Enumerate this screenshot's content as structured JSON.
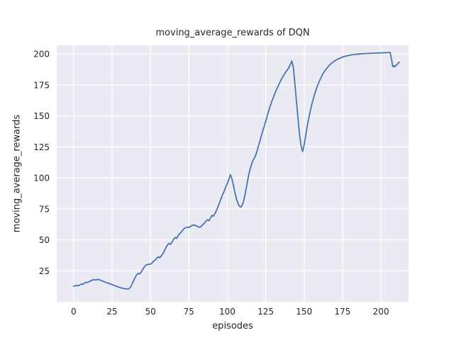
{
  "chart_data": {
    "type": "line",
    "title": "moving_average_rewards of DQN",
    "xlabel": "episodes",
    "ylabel": "moving_average_rewards",
    "xticks": [
      0,
      25,
      50,
      75,
      100,
      125,
      150,
      175,
      200
    ],
    "yticks": [
      25,
      50,
      75,
      100,
      125,
      150,
      175,
      200
    ],
    "xlim": [
      -11,
      218
    ],
    "ylim": [
      0,
      207
    ],
    "grid": true,
    "legend": "none",
    "colors": {
      "line": "#4C72B0",
      "plot_bg": "#EAEAF2",
      "grid": "#FFFFFF",
      "text": "#262626",
      "figure_bg": "#FFFFFF"
    },
    "series": [
      {
        "name": "moving_average_rewards",
        "x": [
          0,
          1,
          2,
          3,
          4,
          5,
          6,
          7,
          8,
          9,
          10,
          11,
          12,
          13,
          14,
          15,
          16,
          17,
          18,
          19,
          20,
          22,
          24,
          26,
          28,
          30,
          32,
          34,
          35,
          36,
          37,
          38,
          39,
          40,
          41,
          42,
          43,
          44,
          45,
          46,
          47,
          48,
          49,
          50,
          51,
          52,
          53,
          54,
          55,
          56,
          57,
          58,
          59,
          60,
          61,
          62,
          63,
          64,
          65,
          66,
          67,
          68,
          69,
          70,
          71,
          72,
          73,
          74,
          75,
          76,
          77,
          78,
          79,
          80,
          81,
          82,
          83,
          84,
          85,
          86,
          87,
          88,
          89,
          90,
          91,
          92,
          93,
          94,
          95,
          96,
          97,
          98,
          99,
          100,
          101,
          102,
          103,
          104,
          105,
          106,
          107,
          108,
          109,
          110,
          111,
          112,
          113,
          114,
          115,
          116,
          117,
          118,
          119,
          120,
          121,
          122,
          123,
          124,
          125,
          126,
          127,
          128,
          129,
          130,
          131,
          132,
          133,
          134,
          135,
          136,
          137,
          138,
          139,
          140,
          141,
          142,
          143,
          144,
          145,
          146,
          147,
          148,
          149,
          150,
          151,
          152,
          153,
          154,
          155,
          156,
          157,
          158,
          159,
          160,
          161,
          162,
          163,
          164,
          165,
          166,
          167,
          168,
          169,
          170,
          172,
          174,
          176,
          178,
          180,
          182,
          184,
          186,
          188,
          190,
          192,
          194,
          196,
          198,
          200,
          202,
          204,
          205,
          206,
          207,
          207.5,
          208,
          208.5,
          209,
          210,
          211,
          212
        ],
        "y": [
          12.5,
          12.8,
          13.2,
          12.9,
          13.6,
          14.3,
          14.1,
          15.0,
          15.8,
          15.5,
          16.2,
          16.8,
          17.4,
          17.9,
          17.5,
          17.8,
          18.1,
          17.6,
          17.1,
          16.6,
          16.1,
          15.2,
          14.3,
          13.4,
          12.4,
          11.5,
          10.8,
          10.4,
          10.3,
          10.6,
          11.8,
          14.2,
          17.0,
          19.6,
          21.7,
          23.0,
          22.5,
          24.0,
          26.3,
          28.2,
          29.5,
          30.0,
          30.2,
          30.4,
          31.2,
          32.7,
          33.6,
          34.9,
          36.3,
          35.5,
          36.9,
          38.7,
          41.0,
          43.7,
          45.8,
          47.2,
          46.3,
          48.1,
          50.2,
          51.9,
          51.1,
          53.5,
          55.0,
          56.2,
          57.8,
          59.3,
          59.8,
          60.2,
          60.0,
          60.7,
          61.5,
          62.0,
          61.7,
          61.1,
          60.5,
          60.1,
          60.8,
          62.2,
          63.3,
          64.8,
          66.2,
          65.5,
          67.4,
          69.7,
          69.1,
          71.3,
          73.8,
          76.9,
          80.2,
          83.5,
          86.7,
          89.3,
          92.7,
          95.5,
          98.8,
          102.6,
          99.4,
          93.9,
          88.1,
          82.9,
          79.3,
          77.0,
          76.5,
          78.9,
          83.1,
          89.5,
          96.3,
          102.8,
          107.7,
          111.8,
          114.7,
          116.8,
          120.2,
          124.5,
          128.8,
          133.3,
          137.5,
          141.4,
          145.7,
          150.1,
          154.4,
          158.2,
          161.8,
          165.1,
          168.3,
          171.2,
          174.0,
          176.7,
          179.1,
          181.3,
          183.4,
          185.3,
          187.1,
          188.8,
          191.5,
          194.3,
          189.0,
          176.0,
          162.0,
          148.0,
          135.0,
          126.0,
          121.3,
          126.5,
          134.0,
          141.5,
          148.0,
          154.0,
          159.3,
          164.0,
          168.2,
          172.0,
          175.4,
          178.3,
          181.0,
          183.4,
          185.5,
          187.3,
          188.9,
          190.3,
          191.6,
          192.7,
          193.7,
          194.5,
          195.9,
          197.0,
          197.9,
          198.6,
          199.1,
          199.5,
          199.8,
          200.0,
          200.2,
          200.4,
          200.5,
          200.6,
          200.7,
          200.8,
          200.9,
          201.0,
          201.1,
          201.2,
          201.3,
          195.0,
          190.8,
          189.6,
          190.6,
          189.8,
          191.0,
          192.3,
          193.4
        ]
      }
    ]
  }
}
